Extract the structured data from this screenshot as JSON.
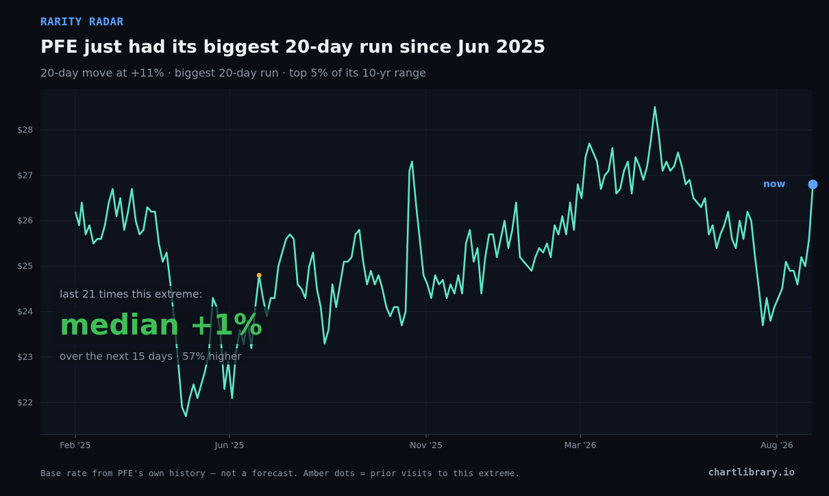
{
  "header": {
    "kicker": "RARITY RADAR",
    "title": "PFE just had its biggest 20-day run since Jun 2025",
    "subtitle": "20-day move at +11%  ·  biggest 20-day run  ·  top 5% of its 10-yr range"
  },
  "callout": {
    "line1": "last 21 times this extreme:",
    "headline": "median +1%",
    "line3": "over the next 15 days  ·  57% higher"
  },
  "footer": {
    "note": "Base rate from PFE's own history — not a forecast. Amber dots = prior visits to this extreme.",
    "brand": "chartlibrary.io"
  },
  "chart_data": {
    "type": "line",
    "title": "PFE just had its biggest 20-day run since Jun 2025",
    "x_ticks": [
      "Feb '25",
      "Jun '25",
      "Nov '25",
      "Mar '26",
      "Aug '26"
    ],
    "y_ticks": [
      "$22",
      "$23",
      "$24",
      "$25",
      "$26",
      "$27",
      "$28"
    ],
    "ylim": [
      21.3,
      28.9
    ],
    "grid": true,
    "line_color": "#5ee6c8",
    "now_color": "#5aa2ff",
    "amber_color": "#f2b033",
    "now_label": "now",
    "series": [
      {
        "points": [
          [
            "2025-02-01",
            26.2
          ],
          [
            "2025-02-04",
            25.9
          ],
          [
            "2025-02-06",
            26.4
          ],
          [
            "2025-02-09",
            25.7
          ],
          [
            "2025-02-12",
            25.9
          ],
          [
            "2025-02-15",
            25.5
          ],
          [
            "2025-02-18",
            25.6
          ],
          [
            "2025-02-21",
            25.6
          ],
          [
            "2025-02-24",
            25.9
          ],
          [
            "2025-02-27",
            26.4
          ],
          [
            "2025-03-02",
            26.7
          ],
          [
            "2025-03-05",
            26.1
          ],
          [
            "2025-03-08",
            26.5
          ],
          [
            "2025-03-11",
            25.8
          ],
          [
            "2025-03-14",
            26.2
          ],
          [
            "2025-03-17",
            26.7
          ],
          [
            "2025-03-20",
            26.0
          ],
          [
            "2025-03-23",
            25.7
          ],
          [
            "2025-03-26",
            25.8
          ],
          [
            "2025-03-29",
            26.3
          ],
          [
            "2025-04-01",
            26.2
          ],
          [
            "2025-04-04",
            26.2
          ],
          [
            "2025-04-07",
            25.5
          ],
          [
            "2025-04-10",
            25.1
          ],
          [
            "2025-04-13",
            25.3
          ],
          [
            "2025-04-16",
            24.6
          ],
          [
            "2025-04-19",
            23.8
          ],
          [
            "2025-04-22",
            22.9
          ],
          [
            "2025-04-25",
            21.9
          ],
          [
            "2025-04-28",
            21.7
          ],
          [
            "2025-05-01",
            22.1
          ],
          [
            "2025-05-04",
            22.4
          ],
          [
            "2025-05-07",
            22.1
          ],
          [
            "2025-05-10",
            22.4
          ],
          [
            "2025-05-13",
            22.7
          ],
          [
            "2025-05-16",
            23.1
          ],
          [
            "2025-05-19",
            24.3
          ],
          [
            "2025-05-22",
            24.1
          ],
          [
            "2025-05-25",
            23.5
          ],
          [
            "2025-05-28",
            22.3
          ],
          [
            "2025-05-31",
            22.9
          ],
          [
            "2025-06-03",
            22.1
          ],
          [
            "2025-06-06",
            23.1
          ],
          [
            "2025-06-09",
            23.6
          ],
          [
            "2025-06-12",
            23.3
          ],
          [
            "2025-06-15",
            23.8
          ],
          [
            "2025-06-18",
            23.2
          ],
          [
            "2025-06-21",
            24.1
          ],
          [
            "2025-06-24",
            24.8
          ],
          [
            "2025-06-27",
            24.3
          ],
          [
            "2025-06-30",
            23.9
          ],
          [
            "2025-07-03",
            24.3
          ],
          [
            "2025-07-06",
            24.3
          ],
          [
            "2025-07-09",
            25.0
          ],
          [
            "2025-07-12",
            25.3
          ],
          [
            "2025-07-15",
            25.6
          ],
          [
            "2025-07-18",
            25.7
          ],
          [
            "2025-07-21",
            25.6
          ],
          [
            "2025-07-24",
            24.6
          ],
          [
            "2025-07-27",
            24.5
          ],
          [
            "2025-07-30",
            24.3
          ],
          [
            "2025-08-02",
            25.0
          ],
          [
            "2025-08-05",
            25.3
          ],
          [
            "2025-08-08",
            24.5
          ],
          [
            "2025-08-11",
            24.1
          ],
          [
            "2025-08-14",
            23.3
          ],
          [
            "2025-08-17",
            23.6
          ],
          [
            "2025-08-20",
            24.6
          ],
          [
            "2025-08-23",
            24.1
          ],
          [
            "2025-08-26",
            24.6
          ],
          [
            "2025-08-29",
            25.1
          ],
          [
            "2025-09-01",
            25.1
          ],
          [
            "2025-09-04",
            25.2
          ],
          [
            "2025-09-07",
            25.7
          ],
          [
            "2025-09-10",
            25.8
          ],
          [
            "2025-09-13",
            25.1
          ],
          [
            "2025-09-16",
            24.6
          ],
          [
            "2025-09-19",
            24.9
          ],
          [
            "2025-09-22",
            24.6
          ],
          [
            "2025-09-25",
            24.8
          ],
          [
            "2025-09-28",
            24.5
          ],
          [
            "2025-10-01",
            24.1
          ],
          [
            "2025-10-04",
            23.9
          ],
          [
            "2025-10-07",
            24.1
          ],
          [
            "2025-10-10",
            24.1
          ],
          [
            "2025-10-13",
            23.7
          ],
          [
            "2025-10-16",
            24.0
          ],
          [
            "2025-10-19",
            27.1
          ],
          [
            "2025-10-21",
            27.3
          ],
          [
            "2025-10-24",
            26.4
          ],
          [
            "2025-10-27",
            25.6
          ],
          [
            "2025-10-30",
            24.8
          ],
          [
            "2025-11-02",
            24.6
          ],
          [
            "2025-11-05",
            24.3
          ],
          [
            "2025-11-08",
            24.8
          ],
          [
            "2025-11-11",
            24.6
          ],
          [
            "2025-11-14",
            24.7
          ],
          [
            "2025-11-17",
            24.3
          ],
          [
            "2025-11-20",
            24.6
          ],
          [
            "2025-11-23",
            24.4
          ],
          [
            "2025-11-26",
            24.8
          ],
          [
            "2025-11-29",
            24.4
          ],
          [
            "2025-12-02",
            25.5
          ],
          [
            "2025-12-05",
            25.8
          ],
          [
            "2025-12-08",
            25.1
          ],
          [
            "2025-12-11",
            25.4
          ],
          [
            "2025-12-14",
            24.4
          ],
          [
            "2025-12-17",
            25.2
          ],
          [
            "2025-12-20",
            25.7
          ],
          [
            "2025-12-23",
            25.7
          ],
          [
            "2025-12-26",
            25.2
          ],
          [
            "2025-12-29",
            25.6
          ],
          [
            "2026-01-01",
            26.0
          ],
          [
            "2026-01-04",
            25.4
          ],
          [
            "2026-01-07",
            25.8
          ],
          [
            "2026-01-10",
            26.4
          ],
          [
            "2026-01-13",
            25.2
          ],
          [
            "2026-01-16",
            25.1
          ],
          [
            "2026-01-19",
            25.0
          ],
          [
            "2026-01-22",
            24.9
          ],
          [
            "2026-01-25",
            25.2
          ],
          [
            "2026-01-28",
            25.4
          ],
          [
            "2026-01-31",
            25.3
          ],
          [
            "2026-02-03",
            25.5
          ],
          [
            "2026-02-06",
            25.2
          ],
          [
            "2026-02-09",
            25.9
          ],
          [
            "2026-02-12",
            25.7
          ],
          [
            "2026-02-15",
            26.1
          ],
          [
            "2026-02-18",
            25.7
          ],
          [
            "2026-02-21",
            26.4
          ],
          [
            "2026-02-24",
            25.8
          ],
          [
            "2026-02-27",
            26.8
          ],
          [
            "2026-03-02",
            26.5
          ],
          [
            "2026-03-05",
            27.4
          ],
          [
            "2026-03-08",
            27.7
          ],
          [
            "2026-03-11",
            27.5
          ],
          [
            "2026-03-14",
            27.3
          ],
          [
            "2026-03-17",
            26.7
          ],
          [
            "2026-03-20",
            27.0
          ],
          [
            "2026-03-23",
            27.1
          ],
          [
            "2026-03-26",
            27.6
          ],
          [
            "2026-03-29",
            26.6
          ],
          [
            "2026-04-01",
            26.7
          ],
          [
            "2026-04-04",
            27.1
          ],
          [
            "2026-04-07",
            27.3
          ],
          [
            "2026-04-10",
            26.6
          ],
          [
            "2026-04-13",
            27.4
          ],
          [
            "2026-04-16",
            27.2
          ],
          [
            "2026-04-19",
            26.9
          ],
          [
            "2026-04-22",
            27.2
          ],
          [
            "2026-04-25",
            27.8
          ],
          [
            "2026-04-28",
            28.5
          ],
          [
            "2026-05-01",
            27.9
          ],
          [
            "2026-05-04",
            27.1
          ],
          [
            "2026-05-07",
            27.3
          ],
          [
            "2026-05-10",
            27.1
          ],
          [
            "2026-05-13",
            27.2
          ],
          [
            "2026-05-16",
            27.5
          ],
          [
            "2026-05-19",
            27.2
          ],
          [
            "2026-05-22",
            26.8
          ],
          [
            "2026-05-25",
            26.9
          ],
          [
            "2026-05-28",
            26.5
          ],
          [
            "2026-05-31",
            26.4
          ],
          [
            "2026-06-03",
            26.3
          ],
          [
            "2026-06-06",
            26.5
          ],
          [
            "2026-06-09",
            25.7
          ],
          [
            "2026-06-12",
            25.9
          ],
          [
            "2026-06-15",
            25.4
          ],
          [
            "2026-06-18",
            25.7
          ],
          [
            "2026-06-21",
            25.9
          ],
          [
            "2026-06-24",
            26.2
          ],
          [
            "2026-06-27",
            25.6
          ],
          [
            "2026-06-30",
            25.4
          ],
          [
            "2026-07-03",
            26.0
          ],
          [
            "2026-07-06",
            25.6
          ],
          [
            "2026-07-09",
            26.2
          ],
          [
            "2026-07-12",
            26.0
          ],
          [
            "2026-07-15",
            25.2
          ],
          [
            "2026-07-18",
            24.5
          ],
          [
            "2026-07-21",
            23.7
          ],
          [
            "2026-07-24",
            24.3
          ],
          [
            "2026-07-27",
            23.8
          ],
          [
            "2026-07-30",
            24.1
          ],
          [
            "2026-08-02",
            24.3
          ],
          [
            "2026-08-05",
            24.5
          ],
          [
            "2026-08-08",
            25.1
          ],
          [
            "2026-08-11",
            24.9
          ],
          [
            "2026-08-14",
            24.9
          ],
          [
            "2026-08-17",
            24.6
          ],
          [
            "2026-08-20",
            25.2
          ],
          [
            "2026-08-23",
            25.0
          ],
          [
            "2026-08-26",
            25.6
          ],
          [
            "2026-08-29",
            26.8
          ]
        ]
      }
    ],
    "amber_points": [
      [
        "2025-06-24",
        24.8
      ]
    ],
    "now_point": [
      "2026-08-29",
      26.8
    ]
  }
}
